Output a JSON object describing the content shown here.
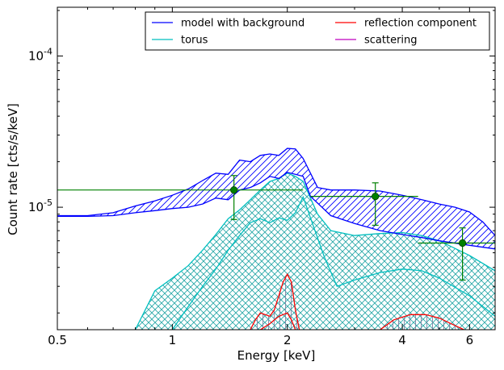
{
  "chart_data": {
    "type": "line",
    "xlabel": "Energy [keV]",
    "ylabel": "Count rate [cts/s/keV]",
    "x_scale": "log",
    "y_scale": "log",
    "xlim": [
      0.5,
      7.0
    ],
    "ylim": [
      1.55e-06,
      0.00021
    ],
    "grid": false,
    "legend_position": "top-right",
    "x_ticks": [
      {
        "value": 0.5,
        "label": "0.5"
      },
      {
        "value": 1,
        "label": "1"
      },
      {
        "value": 2,
        "label": "2"
      },
      {
        "value": 4,
        "label": "4"
      },
      {
        "value": 6,
        "label": "6"
      }
    ],
    "y_ticks": [
      {
        "value": 1e-05,
        "base": "10",
        "exp": "-5"
      },
      {
        "value": 0.0001,
        "base": "10",
        "exp": "-4"
      }
    ],
    "colors": {
      "model": "#0000ff",
      "torus": "#00bfbf",
      "reflection": "#ff0000",
      "scattering": "#bf00bf",
      "data": "#008000",
      "reflection_hatch": "#8080a0"
    },
    "series": [
      {
        "name": "model with background",
        "color": "#0000ff",
        "upper": [
          [
            0.5,
            8.8e-06
          ],
          [
            0.6,
            8.8e-06
          ],
          [
            0.7,
            9.2e-06
          ],
          [
            0.8,
            1.02e-05
          ],
          [
            0.9,
            1.1e-05
          ],
          [
            1.0,
            1.2e-05
          ],
          [
            1.1,
            1.32e-05
          ],
          [
            1.2,
            1.5e-05
          ],
          [
            1.3,
            1.68e-05
          ],
          [
            1.4,
            1.65e-05
          ],
          [
            1.5,
            2.05e-05
          ],
          [
            1.6,
            2e-05
          ],
          [
            1.7,
            2.2e-05
          ],
          [
            1.8,
            2.25e-05
          ],
          [
            1.9,
            2.2e-05
          ],
          [
            2.0,
            2.45e-05
          ],
          [
            2.1,
            2.43e-05
          ],
          [
            2.2,
            2.1e-05
          ],
          [
            2.4,
            1.35e-05
          ],
          [
            2.6,
            1.3e-05
          ],
          [
            3.0,
            1.3e-05
          ],
          [
            3.5,
            1.28e-05
          ],
          [
            4.0,
            1.2e-05
          ],
          [
            4.5,
            1.12e-05
          ],
          [
            5.0,
            1.05e-05
          ],
          [
            5.5,
            1e-05
          ],
          [
            6.0,
            9.3e-06
          ],
          [
            6.5,
            8e-06
          ],
          [
            7.0,
            6.5e-06
          ]
        ],
        "lower": [
          [
            0.5,
            8.7e-06
          ],
          [
            0.6,
            8.7e-06
          ],
          [
            0.7,
            8.8e-06
          ],
          [
            0.8,
            9.2e-06
          ],
          [
            0.9,
            9.5e-06
          ],
          [
            1.0,
            9.8e-06
          ],
          [
            1.1,
            1e-05
          ],
          [
            1.2,
            1.05e-05
          ],
          [
            1.3,
            1.15e-05
          ],
          [
            1.4,
            1.12e-05
          ],
          [
            1.5,
            1.3e-05
          ],
          [
            1.6,
            1.35e-05
          ],
          [
            1.7,
            1.45e-05
          ],
          [
            1.8,
            1.6e-05
          ],
          [
            1.9,
            1.55e-05
          ],
          [
            2.0,
            1.7e-05
          ],
          [
            2.1,
            1.65e-05
          ],
          [
            2.2,
            1.6e-05
          ],
          [
            2.3,
            1.18e-05
          ],
          [
            2.6,
            8.8e-06
          ],
          [
            3.0,
            7.8e-06
          ],
          [
            3.5,
            7e-06
          ],
          [
            4.0,
            6.6e-06
          ],
          [
            4.5,
            6.3e-06
          ],
          [
            5.0,
            6e-06
          ],
          [
            6.0,
            5.6e-06
          ],
          [
            7.0,
            5.3e-06
          ]
        ]
      },
      {
        "name": "torus",
        "color": "#00bfbf",
        "upper": [
          [
            0.8,
            1.55e-06
          ],
          [
            0.9,
            2.8e-06
          ],
          [
            1.0,
            3.4e-06
          ],
          [
            1.1,
            4.1e-06
          ],
          [
            1.2,
            5.2e-06
          ],
          [
            1.3,
            6.6e-06
          ],
          [
            1.4,
            8.4e-06
          ],
          [
            1.5,
            9.6e-06
          ],
          [
            1.6,
            1.12e-05
          ],
          [
            1.7,
            1.3e-05
          ],
          [
            1.8,
            1.48e-05
          ],
          [
            1.9,
            1.55e-05
          ],
          [
            2.0,
            1.68e-05
          ],
          [
            2.1,
            1.6e-05
          ],
          [
            2.2,
            1.48e-05
          ],
          [
            2.4,
            9e-06
          ],
          [
            2.6,
            7e-06
          ],
          [
            3.0,
            6.5e-06
          ],
          [
            3.5,
            6.7e-06
          ],
          [
            4.0,
            6.8e-06
          ],
          [
            4.5,
            6.5e-06
          ],
          [
            5.0,
            6e-06
          ],
          [
            6.0,
            4.8e-06
          ],
          [
            7.0,
            3.8e-06
          ]
        ],
        "lower": [
          [
            1.0,
            1.55e-06
          ],
          [
            1.1,
            2.2e-06
          ],
          [
            1.2,
            3e-06
          ],
          [
            1.3,
            3.9e-06
          ],
          [
            1.4,
            5.2e-06
          ],
          [
            1.5,
            6.5e-06
          ],
          [
            1.6,
            7.9e-06
          ],
          [
            1.7,
            8.4e-06
          ],
          [
            1.8,
            7.9e-06
          ],
          [
            1.9,
            8.5e-06
          ],
          [
            2.0,
            8.2e-06
          ],
          [
            2.1,
            9.2e-06
          ],
          [
            2.2,
            1.17e-05
          ],
          [
            2.3,
            8.5e-06
          ],
          [
            2.5,
            4.7e-06
          ],
          [
            2.7,
            3e-06
          ],
          [
            3.0,
            3.3e-06
          ],
          [
            3.5,
            3.7e-06
          ],
          [
            4.0,
            3.9e-06
          ],
          [
            4.5,
            3.8e-06
          ],
          [
            5.0,
            3.4e-06
          ],
          [
            6.0,
            2.6e-06
          ],
          [
            7.0,
            1.9e-06
          ]
        ]
      },
      {
        "name": "reflection component",
        "color": "#ff0000",
        "peak1": [
          [
            1.6,
            1.55e-06
          ],
          [
            1.65,
            1.8e-06
          ],
          [
            1.7,
            2e-06
          ],
          [
            1.8,
            1.9e-06
          ],
          [
            1.85,
            2.1e-06
          ],
          [
            1.9,
            2.6e-06
          ],
          [
            1.95,
            3.2e-06
          ],
          [
            2.0,
            3.6e-06
          ],
          [
            2.05,
            3.2e-06
          ],
          [
            2.1,
            2.1e-06
          ],
          [
            2.15,
            1.55e-06
          ]
        ],
        "peak1_lower": [
          [
            1.7,
            1.55e-06
          ],
          [
            1.8,
            1.7e-06
          ],
          [
            1.9,
            1.9e-06
          ],
          [
            2.0,
            2e-06
          ],
          [
            2.05,
            1.8e-06
          ],
          [
            2.1,
            1.55e-06
          ]
        ],
        "peak2": [
          [
            3.5,
            1.55e-06
          ],
          [
            3.8,
            1.8e-06
          ],
          [
            4.2,
            1.95e-06
          ],
          [
            4.6,
            1.95e-06
          ],
          [
            5.0,
            1.85e-06
          ],
          [
            5.5,
            1.65e-06
          ],
          [
            5.8,
            1.55e-06
          ]
        ]
      },
      {
        "name": "scattering",
        "color": "#bf00bf"
      }
    ],
    "data_points": [
      {
        "x": 1.45,
        "x_lo": 0.5,
        "x_hi": 2.2,
        "y": 1.3e-05,
        "y_lo": 8.3e-06,
        "y_hi": 1.62e-05
      },
      {
        "x": 3.4,
        "x_lo": 2.3,
        "x_hi": 4.4,
        "y": 1.18e-05,
        "y_lo": 7.6e-06,
        "y_hi": 1.45e-05
      },
      {
        "x": 5.75,
        "x_lo": 4.4,
        "x_hi": 7.0,
        "y": 5.8e-06,
        "y_lo": 3.3e-06,
        "y_hi": 7.3e-06
      }
    ],
    "legend": [
      {
        "label": "model with background",
        "color": "#0000ff"
      },
      {
        "label": "reflection component",
        "color": "#ff0000"
      },
      {
        "label": "torus",
        "color": "#00bfbf"
      },
      {
        "label": "scattering",
        "color": "#bf00bf"
      }
    ]
  }
}
